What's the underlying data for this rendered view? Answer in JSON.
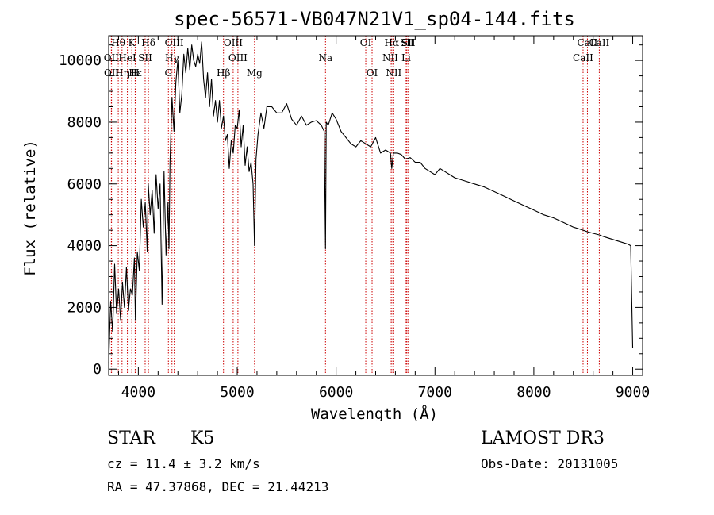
{
  "chart_data": {
    "type": "line",
    "title": "spec-56571-VB047N21V1_sp04-144.fits",
    "xlabel": "Wavelength (Å)",
    "ylabel": "Flux (relative)",
    "xlim": [
      3700,
      9100
    ],
    "ylim": [
      -200,
      10800
    ],
    "xticks": [
      4000,
      5000,
      6000,
      7000,
      8000,
      9000
    ],
    "xtick_labels": [
      "4000",
      "5000",
      "6000",
      "7000",
      "8000",
      "9000"
    ],
    "yticks": [
      0,
      2000,
      4000,
      6000,
      8000,
      10000
    ],
    "ytick_labels": [
      "0",
      "2000",
      "4000",
      "6000",
      "8000",
      "10000"
    ],
    "line_color": "#000000",
    "marker_color": "#cc0000",
    "series": [
      {
        "name": "flux",
        "x": [
          3700,
          3720,
          3740,
          3760,
          3780,
          3800,
          3820,
          3840,
          3860,
          3880,
          3900,
          3920,
          3940,
          3960,
          3970,
          3990,
          4010,
          4030,
          4050,
          4070,
          4090,
          4100,
          4120,
          4140,
          4160,
          4180,
          4200,
          4220,
          4240,
          4260,
          4280,
          4300,
          4310,
          4320,
          4340,
          4360,
          4380,
          4400,
          4420,
          4440,
          4460,
          4480,
          4500,
          4520,
          4540,
          4560,
          4580,
          4600,
          4620,
          4640,
          4660,
          4680,
          4700,
          4720,
          4740,
          4760,
          4780,
          4800,
          4820,
          4840,
          4861,
          4880,
          4900,
          4920,
          4940,
          4960,
          4980,
          5000,
          5020,
          5040,
          5060,
          5080,
          5100,
          5120,
          5140,
          5160,
          5175,
          5190,
          5210,
          5240,
          5270,
          5300,
          5350,
          5400,
          5450,
          5500,
          5550,
          5600,
          5650,
          5700,
          5750,
          5800,
          5850,
          5880,
          5893,
          5900,
          5920,
          5960,
          6000,
          6050,
          6100,
          6150,
          6200,
          6250,
          6300,
          6350,
          6400,
          6450,
          6500,
          6550,
          6563,
          6580,
          6620,
          6660,
          6700,
          6750,
          6800,
          6850,
          6900,
          6950,
          7000,
          7050,
          7100,
          7150,
          7200,
          7300,
          7400,
          7500,
          7600,
          7700,
          7800,
          7900,
          8000,
          8100,
          8200,
          8300,
          8400,
          8500,
          8542,
          8600,
          8662,
          8700,
          8800,
          8900,
          8950,
          8980,
          9000
        ],
        "y": [
          200,
          2200,
          1200,
          3400,
          1800,
          2600,
          1600,
          2800,
          2000,
          3300,
          1900,
          2600,
          2400,
          3600,
          1600,
          3800,
          3200,
          5500,
          4600,
          5400,
          3800,
          6000,
          5000,
          5800,
          4400,
          6300,
          5200,
          6000,
          2100,
          6400,
          3700,
          5400,
          3900,
          6700,
          8800,
          7700,
          9300,
          10000,
          8300,
          8900,
          10200,
          9600,
          10400,
          9700,
          10500,
          10000,
          9800,
          10200,
          9900,
          10600,
          9400,
          8800,
          9600,
          8500,
          9400,
          8200,
          8700,
          8000,
          8700,
          7800,
          8200,
          7400,
          7600,
          6500,
          7400,
          7000,
          7900,
          7800,
          8400,
          7200,
          7900,
          6600,
          7200,
          6400,
          6700,
          6000,
          4000,
          6800,
          7600,
          8300,
          7800,
          8500,
          8500,
          8300,
          8300,
          8600,
          8100,
          7900,
          8200,
          7900,
          8000,
          8050,
          7900,
          7700,
          3900,
          8000,
          7900,
          8300,
          8100,
          7700,
          7500,
          7300,
          7200,
          7400,
          7300,
          7200,
          7500,
          7000,
          7100,
          7000,
          6500,
          7000,
          7000,
          6950,
          6800,
          6850,
          6700,
          6700,
          6500,
          6400,
          6300,
          6500,
          6400,
          6300,
          6200,
          6100,
          6000,
          5900,
          5750,
          5600,
          5450,
          5300,
          5150,
          5000,
          4900,
          4750,
          4600,
          4500,
          4450,
          4400,
          4350,
          4300,
          4200,
          4100,
          4050,
          4000,
          700
        ]
      }
    ],
    "lines": [
      {
        "name": "Hθ",
        "x": 3797
      },
      {
        "name": "K",
        "x": 3934
      },
      {
        "name": "Hδ",
        "x": 4102
      },
      {
        "name": "OIII",
        "x": 4363
      },
      {
        "name": "OIII",
        "x": 4959
      },
      {
        "name": "OI",
        "x": 6300
      },
      {
        "name": "Hα",
        "x": 6563
      },
      {
        "name": "SII",
        "x": 6716
      },
      {
        "name": "CaII",
        "x": 8542
      },
      {
        "name": "OII",
        "x": 3727
      },
      {
        "name": "HeI",
        "x": 3889
      },
      {
        "name": "SII",
        "x": 4069
      },
      {
        "name": "Hγ",
        "x": 4340
      },
      {
        "name": "OIII",
        "x": 5007
      },
      {
        "name": "Na",
        "x": 5893
      },
      {
        "name": "NII",
        "x": 6548
      },
      {
        "name": "Li",
        "x": 6708
      },
      {
        "name": "CaII",
        "x": 8498
      },
      {
        "name": "OII",
        "x": 3729
      },
      {
        "name": "Hε",
        "x": 3970
      },
      {
        "name": "Hη",
        "x": 3835
      },
      {
        "name": "H",
        "x": 3968
      },
      {
        "name": "G",
        "x": 4304
      },
      {
        "name": "Hβ",
        "x": 4861
      },
      {
        "name": "Mg",
        "x": 5175
      },
      {
        "name": "OI",
        "x": 6364
      },
      {
        "name": "NII",
        "x": 6583
      },
      {
        "name": "SII",
        "x": 6731
      },
      {
        "name": "CaII",
        "x": 8662
      }
    ]
  },
  "info": {
    "object_type": "STAR",
    "subclass": "K5",
    "redshift": "cz = 11.4 ± 3.2 km/s",
    "coords": "RA =  47.37868, DEC =  21.44213",
    "survey": "LAMOST DR3",
    "obs_date": "Obs-Date: 20131005"
  }
}
